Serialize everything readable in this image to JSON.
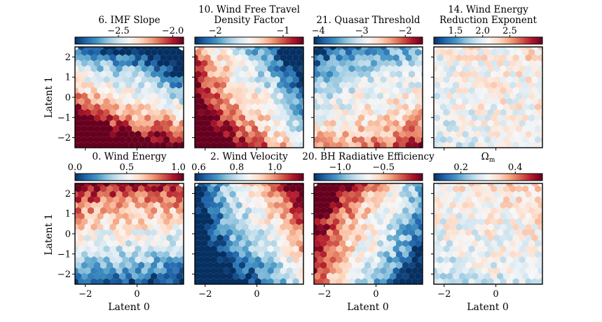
{
  "figure": {
    "colormap": "RdBu_r",
    "colormap_stops": [
      "#053061",
      "#2166ac",
      "#4393c3",
      "#92c5de",
      "#d1e5f0",
      "#f7f7f7",
      "#fddbc7",
      "#f4a582",
      "#d6604d",
      "#b2182b",
      "#67001f"
    ],
    "ylabel": "Latent 1",
    "xlabel": "Latent 0"
  },
  "chart_data": [
    {
      "type": "heatmap",
      "title_lines": [
        "6. IMF Slope"
      ],
      "colorbar_range": [
        -2.9,
        -1.9
      ],
      "colorbar_ticks": [
        -2.5,
        -2.0
      ],
      "colorbar_tick_labels": [
        "−2.5",
        "−2.0"
      ],
      "pattern": [
        0.1,
        -0.35,
        -1.0
      ],
      "xlim": [
        -2.4,
        1.8
      ],
      "ylim": [
        -2.5,
        2.5
      ],
      "xticks": [
        -2,
        0
      ],
      "xtick_labels": [
        "−2",
        "0"
      ],
      "yticks": [
        2,
        1,
        0,
        -1,
        -2
      ],
      "ytick_labels": [
        "2",
        "1",
        "0",
        "−1",
        "−2"
      ]
    },
    {
      "type": "heatmap",
      "title_lines": [
        "10. Wind Free Travel",
        "Density Factor"
      ],
      "colorbar_range": [
        -2.3,
        -0.7
      ],
      "colorbar_ticks": [
        -2,
        -1
      ],
      "colorbar_tick_labels": [
        "−2",
        "−1"
      ],
      "pattern": [
        0.15,
        -0.7,
        -0.5
      ],
      "xlim": [
        -2.4,
        1.8
      ],
      "ylim": [
        -2.5,
        2.5
      ],
      "xticks": [
        -2,
        0
      ],
      "xtick_labels": [
        "−2",
        "0"
      ],
      "yticks": [
        2,
        1,
        0,
        -1,
        -2
      ],
      "ytick_labels": [
        "2",
        "1",
        "0",
        "−1",
        "−2"
      ]
    },
    {
      "type": "heatmap",
      "title_lines": [
        "21. Quasar Threshold"
      ],
      "colorbar_range": [
        -4.1,
        -1.6
      ],
      "colorbar_ticks": [
        -4,
        -3,
        -2
      ],
      "colorbar_tick_labels": [
        "−4",
        "−3",
        "−2"
      ],
      "pattern": [
        -0.05,
        0.15,
        -0.45
      ],
      "xlim": [
        -2.4,
        1.8
      ],
      "ylim": [
        -2.5,
        2.5
      ],
      "xticks": [
        -2,
        0
      ],
      "xtick_labels": [
        "−2",
        "0"
      ],
      "yticks": [
        2,
        1,
        0,
        -1,
        -2
      ],
      "ytick_labels": [
        "2",
        "1",
        "0",
        "−1",
        "−2"
      ]
    },
    {
      "type": "heatmap",
      "title_lines": [
        "14. Wind Energy",
        "Reduction Exponent"
      ],
      "colorbar_range": [
        1.1,
        3.1
      ],
      "colorbar_ticks": [
        1.5,
        2.0,
        2.5
      ],
      "colorbar_tick_labels": [
        "1.5",
        "2.0",
        "2.5"
      ],
      "pattern": [
        0.0,
        0.05,
        0.05
      ],
      "xlim": [
        -2.4,
        1.8
      ],
      "ylim": [
        -2.5,
        2.5
      ],
      "xticks": [
        -2,
        0
      ],
      "xtick_labels": [
        "−2",
        "0"
      ],
      "yticks": [
        2,
        1,
        0,
        -1,
        -2
      ],
      "ytick_labels": [
        "2",
        "1",
        "0",
        "−1",
        "−2"
      ]
    },
    {
      "type": "heatmap",
      "title_lines": [
        "0. Wind Energy"
      ],
      "colorbar_range": [
        0.0,
        1.05
      ],
      "colorbar_ticks": [
        0.0,
        0.5,
        1.0
      ],
      "colorbar_tick_labels": [
        "0.0",
        "0.5",
        "1.0"
      ],
      "pattern": [
        0.0,
        -0.05,
        0.65
      ],
      "xlim": [
        -2.4,
        1.8
      ],
      "ylim": [
        -2.5,
        2.5
      ],
      "xticks": [
        -2,
        0
      ],
      "xtick_labels": [
        "−2",
        "0"
      ],
      "yticks": [
        2,
        1,
        0,
        -1,
        -2
      ],
      "ytick_labels": [
        "2",
        "1",
        "0",
        "−1",
        "−2"
      ]
    },
    {
      "type": "heatmap",
      "title_lines": [
        "2. Wind Velocity"
      ],
      "colorbar_range": [
        0.58,
        1.15
      ],
      "colorbar_ticks": [
        0.6,
        0.8,
        1.0
      ],
      "colorbar_tick_labels": [
        "0.6",
        "0.8",
        "1.0"
      ],
      "pattern": [
        -0.35,
        0.75,
        0.45
      ],
      "xlim": [
        -2.4,
        1.8
      ],
      "ylim": [
        -2.5,
        2.5
      ],
      "xticks": [
        -2,
        0
      ],
      "xtick_labels": [
        "−2",
        "0"
      ],
      "yticks": [
        2,
        1,
        0,
        -1,
        -2
      ],
      "ytick_labels": [
        "2",
        "1",
        "0",
        "−1",
        "−2"
      ]
    },
    {
      "type": "heatmap",
      "title_lines": [
        "20. BH Radiative Efficiency"
      ],
      "colorbar_range": [
        -1.3,
        -0.05
      ],
      "colorbar_ticks": [
        -1.0,
        -0.5
      ],
      "colorbar_tick_labels": [
        "−1.0",
        "−0.5"
      ],
      "pattern": [
        0.05,
        -0.7,
        0.35
      ],
      "xlim": [
        -2.4,
        1.8
      ],
      "ylim": [
        -2.5,
        2.5
      ],
      "xticks": [
        -2,
        0
      ],
      "xtick_labels": [
        "−2",
        "0"
      ],
      "yticks": [
        2,
        1,
        0,
        -1,
        -2
      ],
      "ytick_labels": [
        "2",
        "1",
        "0",
        "−1",
        "−2"
      ]
    },
    {
      "type": "heatmap",
      "title_lines": [],
      "colorbar_label": "Ωm",
      "colorbar_range": [
        0.1,
        0.5
      ],
      "colorbar_ticks": [
        0.2,
        0.4
      ],
      "colorbar_tick_labels": [
        "0.2",
        "0.4"
      ],
      "pattern": [
        0.0,
        0.05,
        0.1
      ],
      "xlim": [
        -2.4,
        1.8
      ],
      "ylim": [
        -2.5,
        2.5
      ],
      "xticks": [
        -2,
        0
      ],
      "xtick_labels": [
        "−2",
        "0"
      ],
      "yticks": [
        2,
        1,
        0,
        -1,
        -2
      ],
      "ytick_labels": [
        "2",
        "1",
        "0",
        "−1",
        "−2"
      ]
    }
  ]
}
